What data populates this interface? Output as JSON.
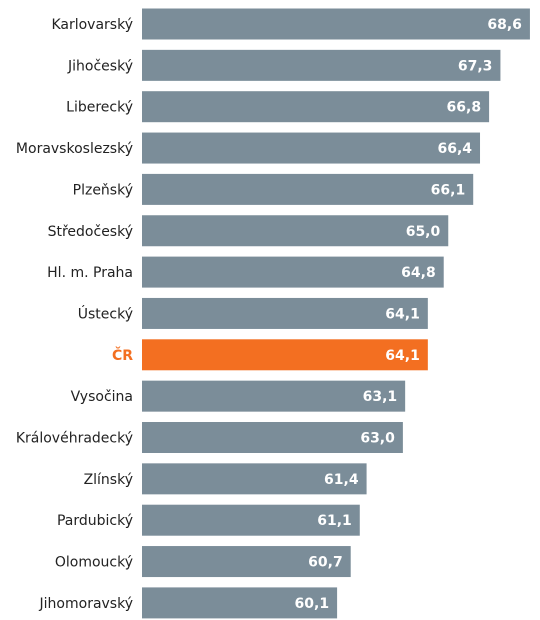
{
  "chart_data": {
    "type": "barh",
    "categories": [
      "Karlovarský",
      "Jihočeský",
      "Liberecký",
      "Moravskoslezský",
      "Plzeňský",
      "Středočeský",
      "Hl. m. Praha",
      "Ústecký",
      "ČR",
      "Vysočina",
      "Královéhradecký",
      "Zlínský",
      "Pardubický",
      "Olomoucký",
      "Jihomoravský"
    ],
    "values": [
      68.6,
      67.3,
      66.8,
      66.4,
      66.1,
      65.0,
      64.8,
      64.1,
      64.1,
      63.1,
      63.0,
      61.4,
      61.1,
      60.7,
      60.1
    ],
    "value_labels": [
      "68,6",
      "67,3",
      "66,8",
      "66,4",
      "66,1",
      "65,0",
      "64,8",
      "64,1",
      "64,1",
      "63,1",
      "63,0",
      "61,4",
      "61,1",
      "60,7",
      "60,1"
    ],
    "color": "#7b8d99",
    "colors": [
      "#7b8d99",
      "#7b8d99",
      "#7b8d99",
      "#7b8d99",
      "#7b8d99",
      "#7b8d99",
      "#7b8d99",
      "#7b8d99",
      "#f36f21",
      "#7b8d99",
      "#7b8d99",
      "#7b8d99",
      "#7b8d99",
      "#7b8d99",
      "#7b8d99"
    ],
    "xlim": [
      51.5,
      69
    ]
  }
}
